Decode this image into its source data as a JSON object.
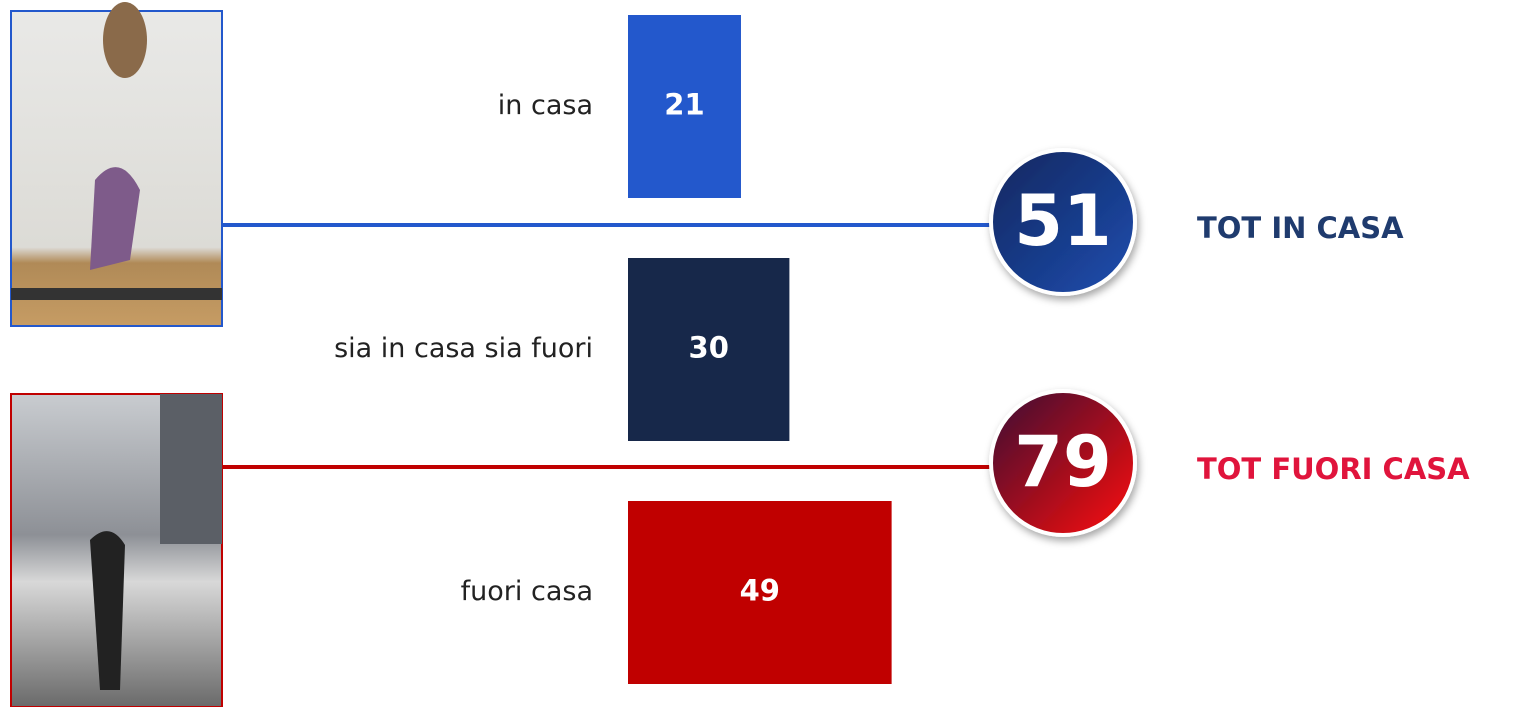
{
  "chart_data": {
    "type": "bar",
    "orientation": "horizontal",
    "categories": [
      "in casa",
      "sia in casa sia fuori",
      "fuori casa"
    ],
    "values": [
      21,
      30,
      49
    ],
    "colors": [
      "#2358cc",
      "#17284a",
      "#c00000"
    ],
    "totals": [
      {
        "value": 51,
        "label": "TOT IN CASA",
        "color": "#1f3b6e"
      },
      {
        "value": 79,
        "label": "TOT FUORI CASA",
        "color": "#e0143c"
      }
    ]
  }
}
